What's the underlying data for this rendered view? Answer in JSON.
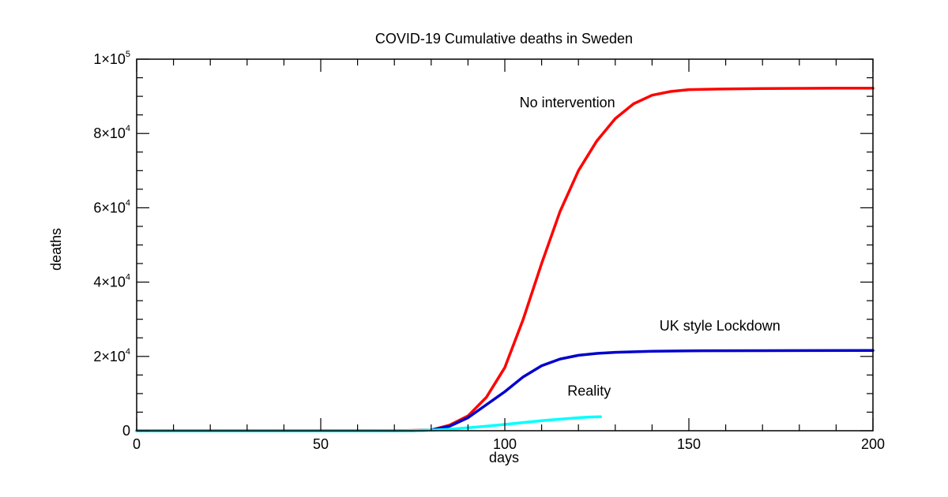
{
  "chart_data": {
    "type": "line",
    "title": "COVID-19 Cumulative deaths in Sweden",
    "xlabel": "days",
    "ylabel": "deaths",
    "xlim": [
      0,
      200
    ],
    "ylim": [
      0,
      100000
    ],
    "x_ticks": [
      0,
      50,
      100,
      150,
      200
    ],
    "y_ticks": [
      {
        "value": 0,
        "mantissa": "0",
        "exponent": ""
      },
      {
        "value": 20000,
        "mantissa": "2",
        "exponent": "4"
      },
      {
        "value": 40000,
        "mantissa": "4",
        "exponent": "4"
      },
      {
        "value": 60000,
        "mantissa": "6",
        "exponent": "4"
      },
      {
        "value": 80000,
        "mantissa": "8",
        "exponent": "4"
      },
      {
        "value": 100000,
        "mantissa": "1",
        "exponent": "5"
      }
    ],
    "grid": false,
    "annotations": [
      {
        "text": "No intervention",
        "x": 104,
        "y": 87000
      },
      {
        "text": "UK style Lockdown",
        "x": 142,
        "y": 27000
      },
      {
        "text": "Reality",
        "x": 117,
        "y": 9500
      }
    ],
    "series": [
      {
        "color": "#ff0000",
        "x": [
          0,
          70,
          80,
          85,
          90,
          95,
          100,
          105,
          110,
          115,
          120,
          125,
          130,
          135,
          140,
          145,
          150,
          160,
          170,
          180,
          190,
          200
        ],
        "y": [
          0,
          0,
          200,
          1500,
          4000,
          9000,
          17000,
          30000,
          45000,
          59000,
          70000,
          78000,
          84000,
          88000,
          90300,
          91300,
          91800,
          92000,
          92100,
          92150,
          92200,
          92200
        ]
      },
      {
        "color": "#0000cc",
        "x": [
          0,
          75,
          80,
          85,
          90,
          95,
          100,
          105,
          110,
          115,
          120,
          125,
          130,
          140,
          150,
          170,
          200
        ],
        "y": [
          0,
          0,
          200,
          1200,
          3500,
          7000,
          10500,
          14500,
          17500,
          19300,
          20300,
          20800,
          21100,
          21400,
          21500,
          21550,
          21600
        ]
      },
      {
        "color": "#00ffff",
        "x": [
          0,
          65,
          75,
          80,
          85,
          90,
          95,
          100,
          105,
          110,
          115,
          120,
          123,
          126
        ],
        "y": [
          0,
          0,
          50,
          150,
          400,
          800,
          1200,
          1700,
          2200,
          2700,
          3100,
          3500,
          3700,
          3750
        ]
      }
    ]
  }
}
